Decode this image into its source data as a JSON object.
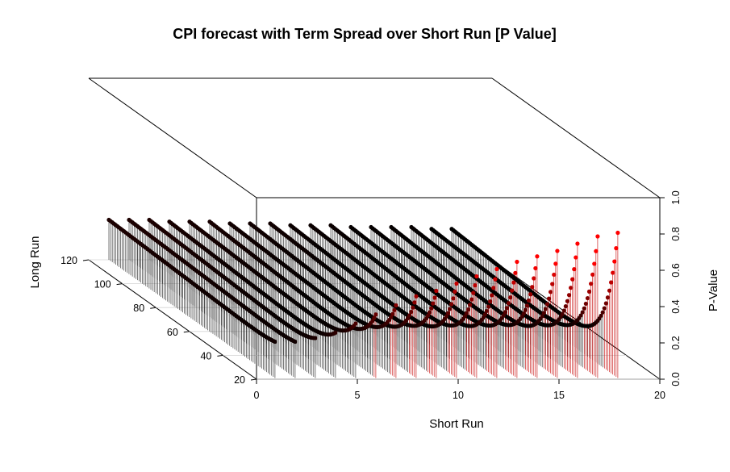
{
  "chart_data": {
    "type": "scatter3d",
    "title": "CPI forecast with Term Spread over Short Run [P Value]",
    "xlabel": "Short Run",
    "ylabel": "Long Run",
    "zlabel": "P-Value",
    "xlim": [
      0,
      20
    ],
    "ylim": [
      20,
      120
    ],
    "zlim": [
      0,
      1
    ],
    "x_ticks": [
      "0",
      "5",
      "10",
      "15",
      "20"
    ],
    "y_ticks": [
      "20",
      "40",
      "60",
      "80",
      "100",
      "120"
    ],
    "z_ticks": [
      "0.0",
      "0.2",
      "0.4",
      "0.6",
      "0.8",
      "1.0"
    ],
    "point_type": "vertical drop lines with points",
    "color_scale": [
      "#000000",
      "#ff0000"
    ],
    "short_run_series": [
      1,
      2,
      3,
      4,
      5,
      6,
      7,
      8,
      9,
      10,
      11,
      12,
      13,
      14,
      15,
      16,
      17,
      18
    ],
    "long_run_range": [
      21,
      120
    ],
    "pvalue_at_long_run_start": [
      0.2,
      0.2,
      0.22,
      0.25,
      0.3,
      0.35,
      0.4,
      0.45,
      0.48,
      0.52,
      0.56,
      0.6,
      0.64,
      0.67,
      0.7,
      0.74,
      0.78,
      0.8
    ],
    "pvalue_at_long_run_end": [
      0.22,
      0.22,
      0.22,
      0.21,
      0.21,
      0.21,
      0.2,
      0.2,
      0.2,
      0.19,
      0.19,
      0.19,
      0.18,
      0.18,
      0.18,
      0.18,
      0.17,
      0.17
    ],
    "pvalue_minimum": [
      0.18,
      0.18,
      0.17,
      0.16,
      0.16,
      0.15,
      0.15,
      0.14,
      0.14,
      0.13,
      0.13,
      0.12,
      0.12,
      0.12,
      0.11,
      0.11,
      0.11,
      0.1
    ]
  }
}
